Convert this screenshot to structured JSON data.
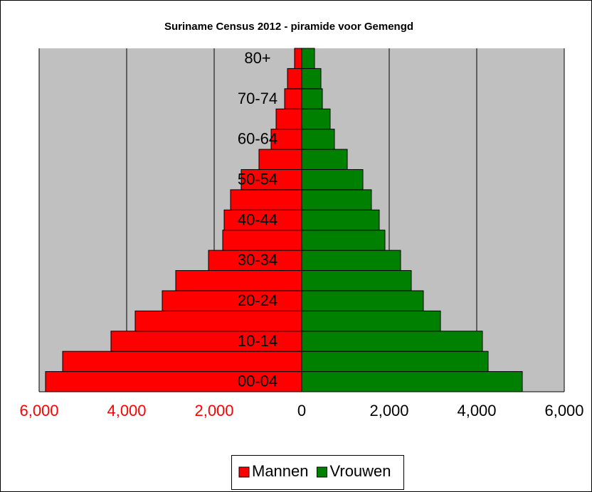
{
  "chart_data": {
    "type": "pyramid",
    "title": "Suriname Census 2012 - piramide voor  Gemengd",
    "categories": [
      "00-04",
      null,
      "10-14",
      null,
      "20-24",
      null,
      "30-34",
      null,
      "40-44",
      null,
      "50-54",
      null,
      "60-64",
      null,
      "70-74",
      null,
      "80+"
    ],
    "series": [
      {
        "name": "Mannen",
        "color": "#ff0000",
        "values": [
          -5854,
          -5463,
          -4358,
          -3805,
          -3187,
          -2878,
          -2130,
          -1805,
          -1772,
          -1626,
          -1382,
          -976,
          -699,
          -585,
          -390,
          -325,
          -163
        ]
      },
      {
        "name": "Vrouwen",
        "color": "#008000",
        "values": [
          5041,
          4260,
          4130,
          3171,
          2780,
          2504,
          2260,
          1902,
          1772,
          1593,
          1398,
          1041,
          748,
          650,
          472,
          439,
          293
        ]
      }
    ],
    "xlim": [
      -6000,
      6000
    ],
    "xticks": [
      {
        "value": -6000,
        "label": "6,000"
      },
      {
        "value": -4000,
        "label": "4,000"
      },
      {
        "value": -2000,
        "label": "2,000"
      },
      0,
      {
        "value": 2000,
        "label": "2,000"
      },
      {
        "value": 4000,
        "label": "4,000"
      },
      {
        "value": 6000,
        "label": "6,000"
      }
    ],
    "negative_tick_color": "#ff0000",
    "grid": true,
    "legend": "bottom"
  }
}
